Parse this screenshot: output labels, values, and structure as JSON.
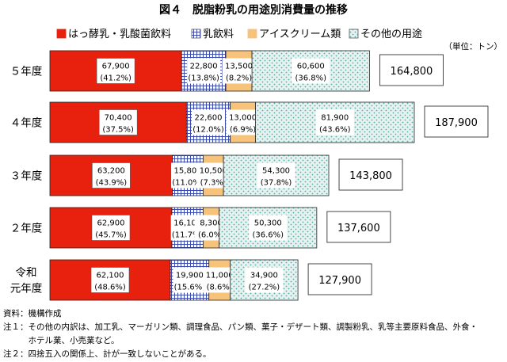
{
  "chart_data": {
    "type": "bar",
    "orientation": "horizontal",
    "stacked": true,
    "title": "図４　脱脂粉乳の用途別消費量の推移",
    "unit": "（単位：トン）",
    "categories": [
      "５年度",
      "４年度",
      "３年度",
      "２年度",
      "令和元年度"
    ],
    "category_lines": [
      [
        "５年度"
      ],
      [
        "４年度"
      ],
      [
        "３年度"
      ],
      [
        "２年度"
      ],
      [
        "令和",
        "元年度"
      ]
    ],
    "series": [
      {
        "name": "はっ酵乳・乳酸菌飲料",
        "color": "#e8210f",
        "pattern": "solid",
        "values": [
          67900,
          70400,
          63200,
          62900,
          62100
        ],
        "value_labels": [
          "67,900",
          "70,400",
          "63,200",
          "62,900",
          "62,100"
        ],
        "share_labels": [
          "(41.2%)",
          "(37.5%)",
          "(43.9%)",
          "(45.7%)",
          "(48.6%)"
        ]
      },
      {
        "name": "乳飲料",
        "color": "#3b4bb0",
        "pattern": "grid",
        "values": [
          22800,
          22600,
          15800,
          16100,
          19900
        ],
        "value_labels": [
          "22,800",
          "22,600",
          "15,800",
          "16,100",
          "19,900"
        ],
        "share_labels": [
          "(13.8%)",
          "(12.0%)",
          "(11.0%)",
          "(11.7%)",
          "(15.6%)"
        ]
      },
      {
        "name": "アイスクリーム類",
        "color": "#f7c27a",
        "pattern": "solid",
        "values": [
          13500,
          13000,
          10500,
          8300,
          11000
        ],
        "value_labels": [
          "13,500",
          "13,000",
          "10,500",
          "8,300",
          "11,000"
        ],
        "share_labels": [
          "(8.2%)",
          "(6.9%)",
          "(7.3%)",
          "(6.0%)",
          "(8.6%)"
        ]
      },
      {
        "name": "その他の用途",
        "color": "#5aa8a0",
        "pattern": "dots",
        "values": [
          60600,
          81900,
          54300,
          50300,
          34900
        ],
        "value_labels": [
          "60,600",
          "81,900",
          "54,300",
          "50,300",
          "34,900"
        ],
        "share_labels": [
          "(36.8%)",
          "(43.6%)",
          "(37.8%)",
          "(36.6%)",
          "(27.2%)"
        ]
      }
    ],
    "totals": [
      164800,
      187900,
      143800,
      137600,
      127900
    ],
    "total_labels": [
      "164,800",
      "187,900",
      "143,800",
      "137,600",
      "127,900"
    ],
    "legend": "top"
  },
  "notes": [
    "資料：機構作成",
    "注１：その他の内訳は、加工乳、マーガリン類、調理食品、パン類、菓子・デザート類、調製粉乳、乳等主要原料食品、外食・",
    "　　　ホテル業、小売業など。",
    "注２：四捨五入の関係上、計が一致しないことがある。"
  ]
}
